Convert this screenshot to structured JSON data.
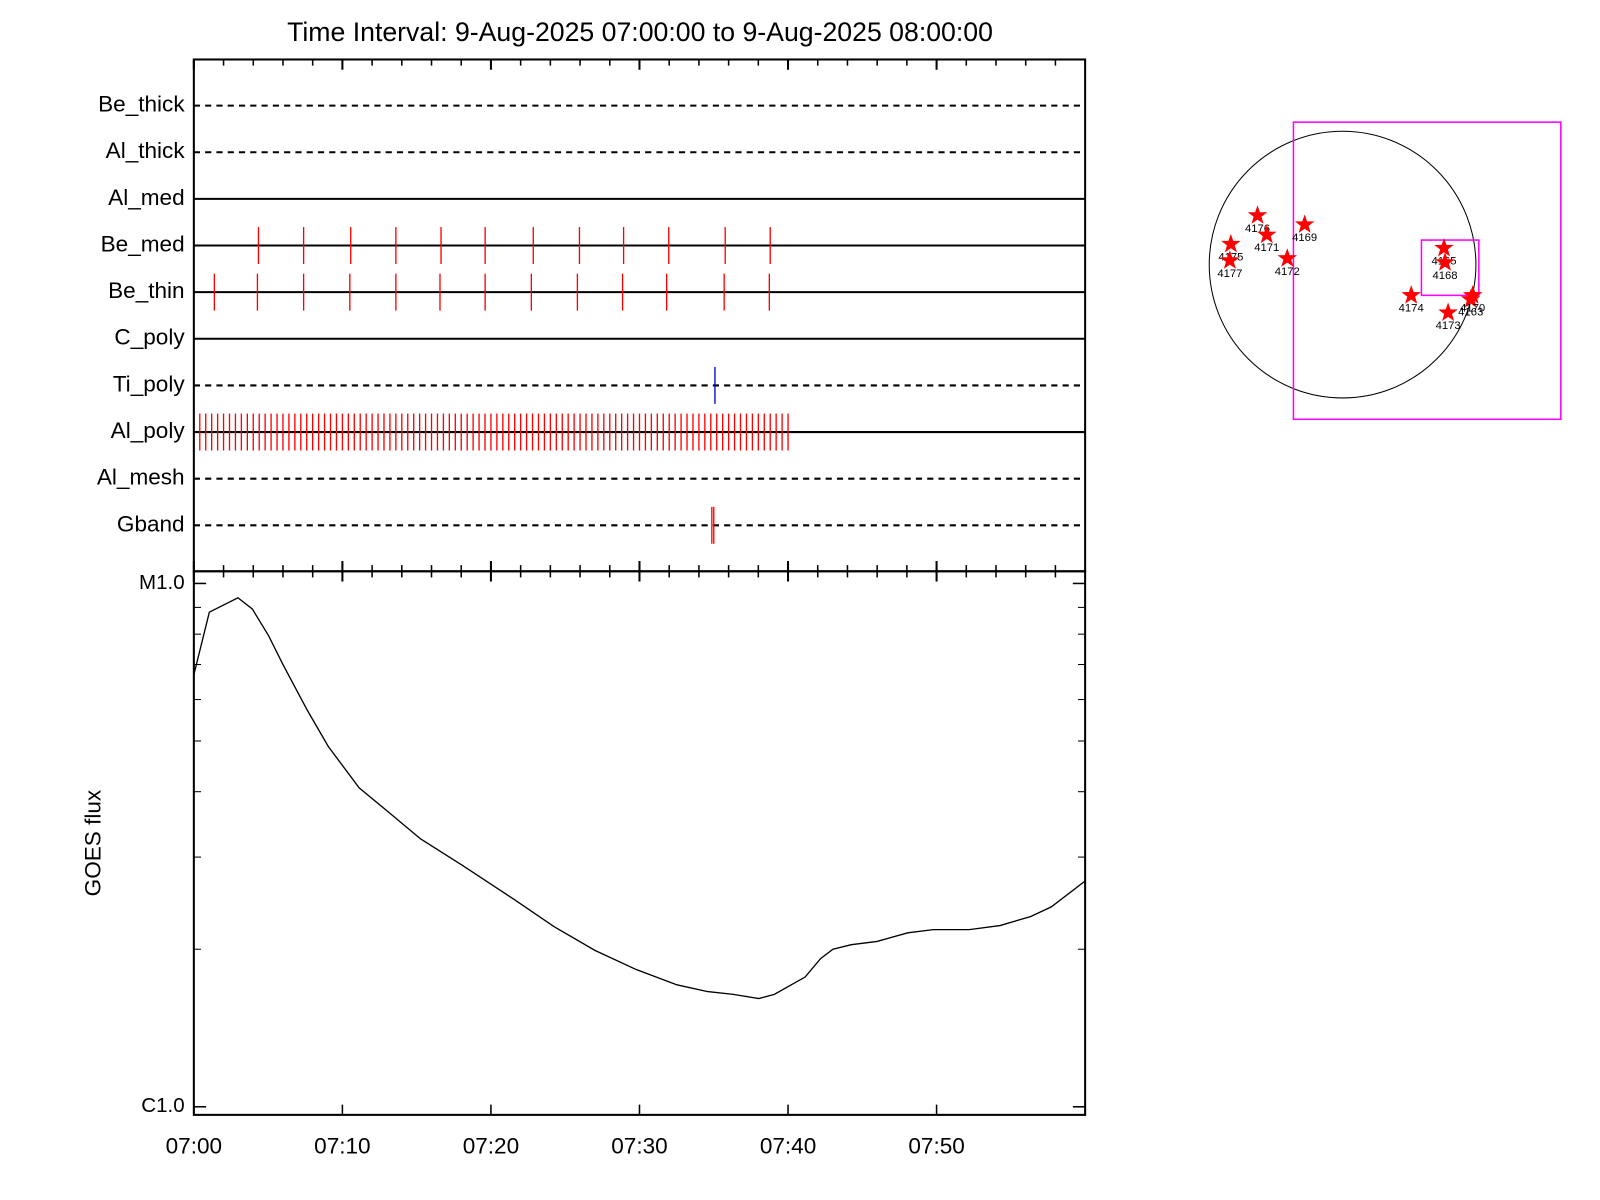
{
  "chart_data": [
    {
      "type": "timeline",
      "title": "Time Interval:  9-Aug-2025 07:00:00 to  9-Aug-2025 08:00:00",
      "xlim": [
        0,
        60
      ],
      "xticks": [
        0,
        10,
        20,
        30,
        40,
        50
      ],
      "xminorticks": [
        2,
        4,
        6,
        8,
        12,
        14,
        16,
        18,
        22,
        24,
        26,
        28,
        32,
        34,
        36,
        38,
        42,
        44,
        46,
        48,
        52,
        54,
        56,
        58
      ],
      "channels": [
        {
          "name": "Be_thick",
          "style": "dashed",
          "color": "#ff0000",
          "values": []
        },
        {
          "name": "Al_thick",
          "style": "dashed",
          "color": "#ff0000",
          "values": []
        },
        {
          "name": "Al_med",
          "style": "solid",
          "color": "#ff0000",
          "values": []
        },
        {
          "name": "Be_med",
          "style": "solid",
          "color": "#ff0000",
          "values": [
            4.35,
            7.39,
            10.56,
            13.6,
            16.64,
            19.61,
            22.85,
            25.96,
            28.93,
            31.97,
            35.77,
            38.8
          ]
        },
        {
          "name": "Be_thin",
          "style": "solid",
          "color": "#ff0000",
          "values": [
            1.38,
            4.28,
            7.39,
            10.5,
            13.6,
            16.57,
            19.61,
            22.72,
            25.82,
            28.86,
            31.83,
            35.7,
            38.74
          ]
        },
        {
          "name": "C_poly",
          "style": "solid",
          "color": "#ff0000",
          "values": []
        },
        {
          "name": "Ti_poly",
          "style": "dashed",
          "color": "#0000cc",
          "values": [
            35.08
          ]
        },
        {
          "name": "Al_poly",
          "style": "solid",
          "color": "#ff0000",
          "values": [
            0,
            0.4,
            0.8,
            1.2,
            1.6,
            2,
            2.4,
            2.8,
            3.2,
            3.6,
            4,
            4.4,
            4.8,
            5.2,
            5.6,
            6,
            6.4,
            6.8,
            7.2,
            7.6,
            8,
            8.4,
            8.8,
            9.2,
            9.6,
            10,
            10.4,
            10.8,
            11.2,
            11.6,
            12,
            12.4,
            12.8,
            13.2,
            13.6,
            14,
            14.4,
            14.8,
            15.2,
            15.6,
            16,
            16.4,
            16.8,
            17.2,
            17.6,
            18,
            18.4,
            18.8,
            19.2,
            19.6,
            20,
            20.4,
            20.8,
            21.2,
            21.6,
            22,
            22.4,
            22.8,
            23.2,
            23.6,
            24,
            24.4,
            24.8,
            25.2,
            25.6,
            26,
            26.4,
            26.8,
            27.2,
            27.6,
            28,
            28.4,
            28.8,
            29.2,
            29.6,
            30,
            30.4,
            30.8,
            31.2,
            31.6,
            32,
            32.4,
            32.8,
            33.2,
            33.6,
            34,
            34.4,
            34.8,
            35.2,
            35.6,
            36,
            36.4,
            36.8,
            37.2,
            37.6,
            38,
            38.4,
            38.8,
            39.2,
            39.6,
            40
          ]
        },
        {
          "name": "Al_mesh",
          "style": "dashed",
          "color": "#ff0000",
          "values": []
        },
        {
          "name": "Gband",
          "style": "dashed",
          "color": "#ff0000",
          "values": [
            34.87,
            35.0
          ]
        }
      ]
    },
    {
      "type": "line",
      "y_label": "GOES flux",
      "color": "#000000",
      "log_scale": true,
      "xlim": [
        0,
        60
      ],
      "xticks": [
        {
          "value": 0,
          "label": "07:00"
        },
        {
          "value": 10,
          "label": "07:10"
        },
        {
          "value": 20,
          "label": "07:20"
        },
        {
          "value": 30,
          "label": "07:30"
        },
        {
          "value": 40,
          "label": "07:40"
        },
        {
          "value": 50,
          "label": "07:50"
        }
      ],
      "ylim": [
        9.65e-07,
        1.055e-05
      ],
      "yticks": [
        {
          "value": 1e-06,
          "label": "C1.0"
        },
        {
          "value": 1e-05,
          "label": "M1.0"
        }
      ],
      "yminorticks": [
        2e-06,
        3e-06,
        4e-06,
        5e-06,
        6e-06,
        7e-06,
        8e-06,
        9e-06
      ],
      "x": [
        0,
        1.04,
        2.97,
        3.94,
        5.04,
        6.0,
        7.66,
        9.05,
        11.12,
        13.19,
        15.26,
        18.02,
        21.47,
        24.24,
        27.0,
        29.76,
        32.52,
        34.59,
        36.32,
        38.04,
        39.08,
        41.15,
        42.19,
        43.02,
        44.26,
        45.99,
        48.06,
        49.78,
        52.2,
        54.27,
        56.34,
        57.72,
        60
      ],
      "values": [
        6.69e-06,
        8.81e-06,
        9.39e-06,
        8.93e-06,
        7.94e-06,
        7e-06,
        5.71e-06,
        4.88e-06,
        4.07e-06,
        3.64e-06,
        3.25e-06,
        2.9e-06,
        2.5e-06,
        2.21e-06,
        1.99e-06,
        1.83e-06,
        1.71e-06,
        1.66e-06,
        1.64e-06,
        1.61e-06,
        1.64e-06,
        1.77e-06,
        1.92e-06,
        2e-06,
        2.04e-06,
        2.07e-06,
        2.15e-06,
        2.18e-06,
        2.18e-06,
        2.22e-06,
        2.31e-06,
        2.41e-06,
        2.7e-06
      ]
    },
    {
      "type": "map",
      "disk_radius": 950,
      "color": "#ff0000",
      "box_color": "#ff00ff",
      "labels": [
        "4176",
        "4171",
        "4169",
        "4175",
        "4177",
        "4172",
        "4165",
        "4168",
        "4174",
        "4173",
        "4163",
        "4170"
      ],
      "x": [
        -606,
        -540,
        -270,
        -796,
        -803,
        -394,
        723,
        730,
        489,
        752,
        913,
        927
      ],
      "values": [
        350,
        212,
        285,
        146,
        29,
        44,
        117,
        15,
        -219,
        -343,
        -248,
        -219
      ],
      "boxes": [
        {
          "xlim": [
            -350,
            1555
          ],
          "ylim": [
            -1102,
            1015
          ]
        },
        {
          "xlim": [
            562,
            971
          ],
          "ylim": [
            -219,
            175
          ]
        }
      ]
    }
  ]
}
